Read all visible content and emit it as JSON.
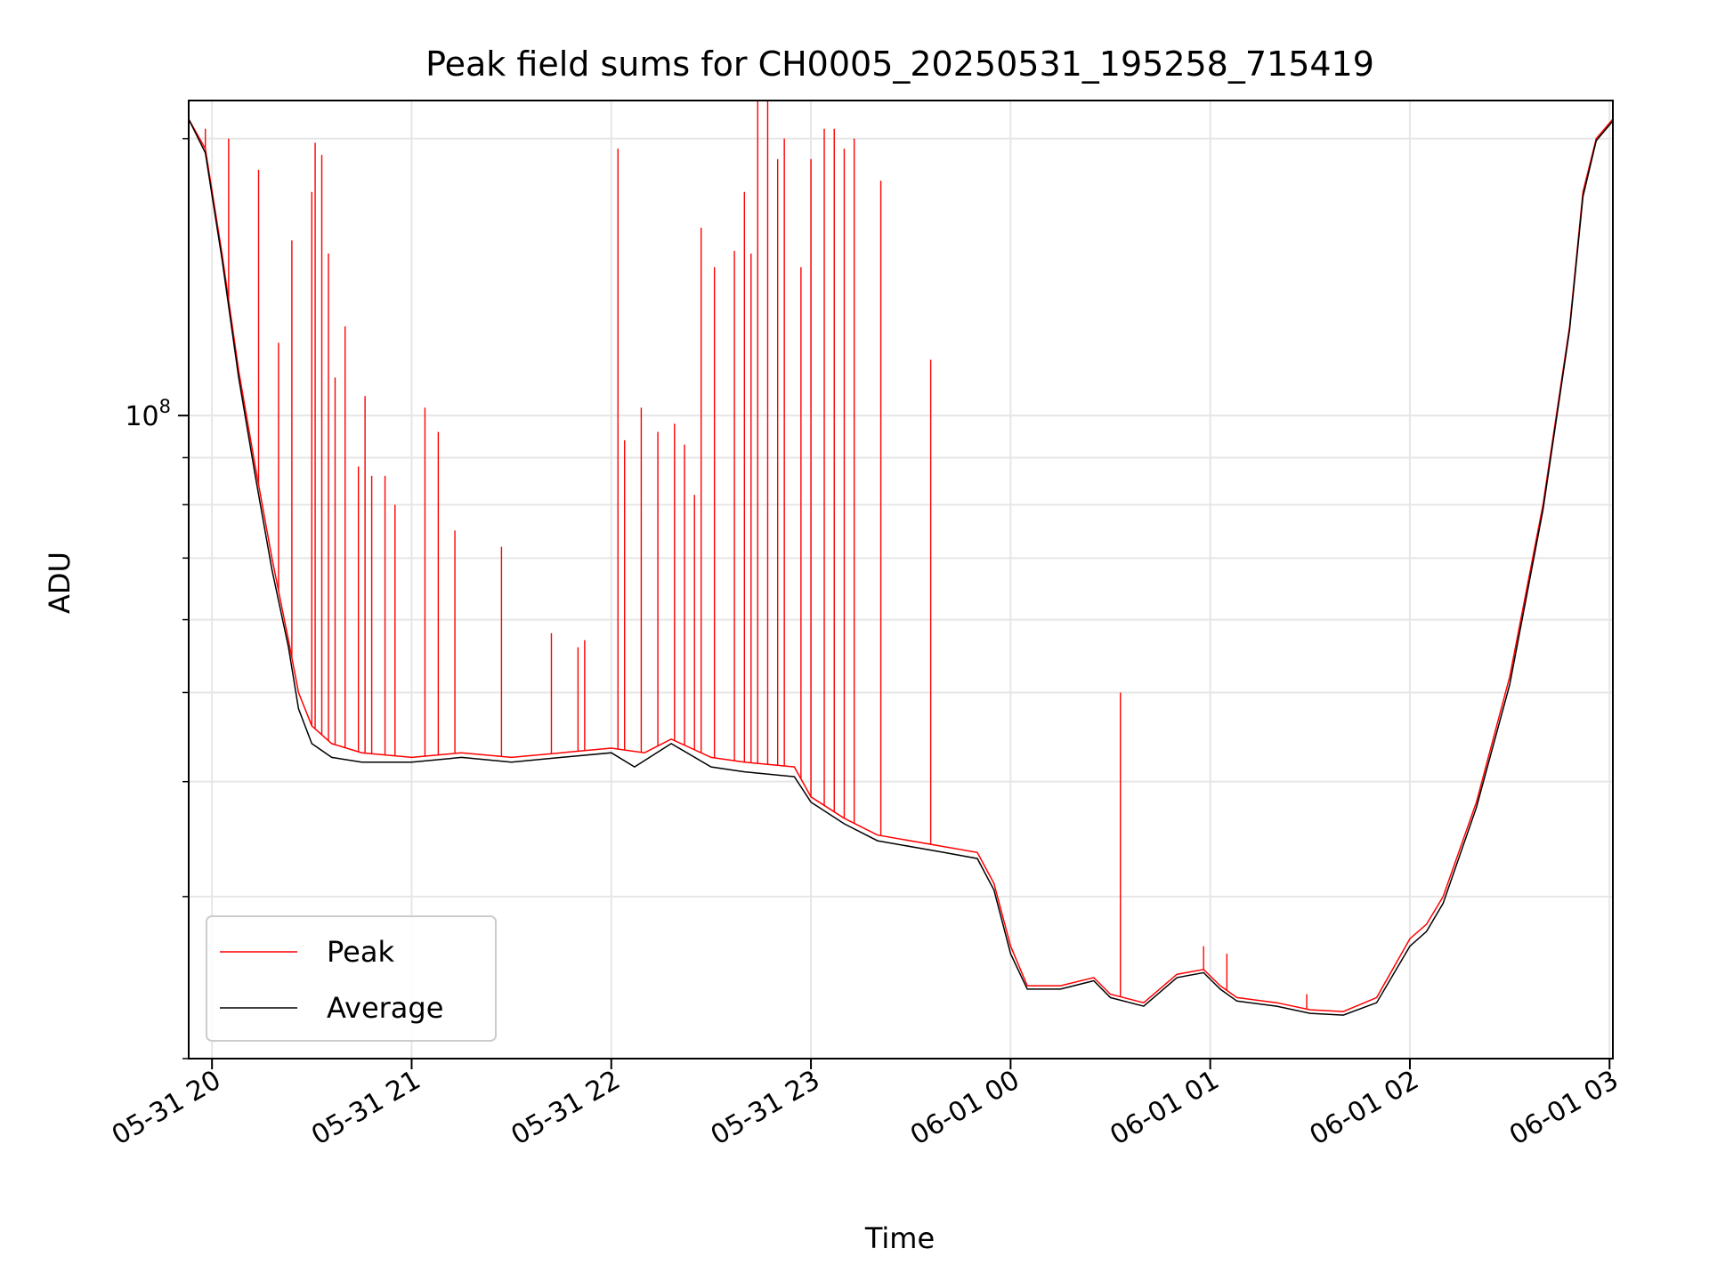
{
  "chart_data": {
    "type": "line",
    "title": "Peak field sums for CH0005_20250531_195258_715419",
    "xlabel": "Time",
    "ylabel": "ADU",
    "y_scale": "log",
    "ylim": [
      20000000,
      220000000
    ],
    "xlim": [
      "2025-05-31 19:53",
      "2025-06-01 03:01"
    ],
    "grid": true,
    "legend_position": "lower-left",
    "x_ticks": [
      {
        "t": "2025-05-31 20:00",
        "label": "05-31 20"
      },
      {
        "t": "2025-05-31 21:00",
        "label": "05-31 21"
      },
      {
        "t": "2025-05-31 22:00",
        "label": "05-31 22"
      },
      {
        "t": "2025-05-31 23:00",
        "label": "05-31 23"
      },
      {
        "t": "2025-06-01 00:00",
        "label": "06-01 00"
      },
      {
        "t": "2025-06-01 01:00",
        "label": "06-01 01"
      },
      {
        "t": "2025-06-01 02:00",
        "label": "06-01 02"
      },
      {
        "t": "2025-06-01 03:00",
        "label": "06-01 03"
      }
    ],
    "y_ticks": [
      {
        "value": 100000000,
        "label": "10",
        "exp": "8"
      }
    ],
    "series": [
      {
        "name": "Peak",
        "color": "#ff0000",
        "baseline": [
          [
            "2025-05-31 19:53",
            210000000
          ],
          [
            "2025-05-31 19:58",
            195000000
          ],
          [
            "2025-05-31 20:03",
            150000000
          ],
          [
            "2025-05-31 20:08",
            112000000
          ],
          [
            "2025-05-31 20:13",
            88000000
          ],
          [
            "2025-05-31 20:18",
            70000000
          ],
          [
            "2025-05-31 20:23",
            57000000
          ],
          [
            "2025-05-31 20:26",
            50000000
          ],
          [
            "2025-05-31 20:30",
            46000000
          ],
          [
            "2025-05-31 20:36",
            44000000
          ],
          [
            "2025-05-31 20:45",
            43000000
          ],
          [
            "2025-05-31 21:00",
            42500000
          ],
          [
            "2025-05-31 21:15",
            43000000
          ],
          [
            "2025-05-31 21:30",
            42500000
          ],
          [
            "2025-05-31 21:45",
            43000000
          ],
          [
            "2025-05-31 22:00",
            43500000
          ],
          [
            "2025-05-31 22:10",
            43000000
          ],
          [
            "2025-05-31 22:18",
            44500000
          ],
          [
            "2025-05-31 22:30",
            42500000
          ],
          [
            "2025-05-31 22:40",
            42000000
          ],
          [
            "2025-05-31 22:55",
            41500000
          ],
          [
            "2025-05-31 23:00",
            38500000
          ],
          [
            "2025-05-31 23:10",
            36500000
          ],
          [
            "2025-05-31 23:20",
            35000000
          ],
          [
            "2025-05-31 23:40",
            34000000
          ],
          [
            "2025-05-31 23:50",
            33500000
          ],
          [
            "2025-05-31 23:55",
            31000000
          ],
          [
            "2025-06-01 00:00",
            26500000
          ],
          [
            "2025-06-01 00:05",
            24000000
          ],
          [
            "2025-06-01 00:15",
            24000000
          ],
          [
            "2025-06-01 00:25",
            24500000
          ],
          [
            "2025-06-01 00:30",
            23500000
          ],
          [
            "2025-06-01 00:40",
            23000000
          ],
          [
            "2025-06-01 00:50",
            24700000
          ],
          [
            "2025-06-01 00:58",
            25000000
          ],
          [
            "2025-06-01 01:03",
            24000000
          ],
          [
            "2025-06-01 01:08",
            23300000
          ],
          [
            "2025-06-01 01:20",
            23000000
          ],
          [
            "2025-06-01 01:30",
            22600000
          ],
          [
            "2025-06-01 01:40",
            22500000
          ],
          [
            "2025-06-01 01:50",
            23300000
          ],
          [
            "2025-06-01 02:00",
            27000000
          ],
          [
            "2025-06-01 02:05",
            28000000
          ],
          [
            "2025-06-01 02:10",
            30000000
          ],
          [
            "2025-06-01 02:20",
            38000000
          ],
          [
            "2025-06-01 02:30",
            52000000
          ],
          [
            "2025-06-01 02:40",
            80000000
          ],
          [
            "2025-06-01 02:48",
            125000000
          ],
          [
            "2025-06-01 02:52",
            175000000
          ],
          [
            "2025-06-01 02:56",
            200000000
          ],
          [
            "2025-06-01 03:01",
            210000000
          ]
        ],
        "spikes": [
          [
            "2025-05-31 19:58",
            205000000
          ],
          [
            "2025-05-31 20:05",
            200000000
          ],
          [
            "2025-05-31 20:14",
            185000000
          ],
          [
            "2025-05-31 20:20",
            120000000
          ],
          [
            "2025-05-31 20:24",
            155000000
          ],
          [
            "2025-05-31 20:30",
            175000000
          ],
          [
            "2025-05-31 20:31",
            198000000
          ],
          [
            "2025-05-31 20:33",
            192000000
          ],
          [
            "2025-05-31 20:35",
            150000000
          ],
          [
            "2025-05-31 20:37",
            110000000
          ],
          [
            "2025-05-31 20:40",
            125000000
          ],
          [
            "2025-05-31 20:44",
            88000000
          ],
          [
            "2025-05-31 20:46",
            105000000
          ],
          [
            "2025-05-31 20:48",
            86000000
          ],
          [
            "2025-05-31 20:52",
            86000000
          ],
          [
            "2025-05-31 20:55",
            80000000
          ],
          [
            "2025-05-31 21:04",
            102000000
          ],
          [
            "2025-05-31 21:08",
            96000000
          ],
          [
            "2025-05-31 21:13",
            75000000
          ],
          [
            "2025-05-31 21:27",
            72000000
          ],
          [
            "2025-05-31 21:42",
            58000000
          ],
          [
            "2025-05-31 21:50",
            56000000
          ],
          [
            "2025-05-31 21:52",
            57000000
          ],
          [
            "2025-05-31 22:02",
            195000000
          ],
          [
            "2025-05-31 22:04",
            94000000
          ],
          [
            "2025-05-31 22:09",
            102000000
          ],
          [
            "2025-05-31 22:14",
            96000000
          ],
          [
            "2025-05-31 22:19",
            98000000
          ],
          [
            "2025-05-31 22:22",
            93000000
          ],
          [
            "2025-05-31 22:25",
            82000000
          ],
          [
            "2025-05-31 22:27",
            160000000
          ],
          [
            "2025-05-31 22:31",
            145000000
          ],
          [
            "2025-05-31 22:37",
            151000000
          ],
          [
            "2025-05-31 22:40",
            175000000
          ],
          [
            "2025-05-31 22:42",
            150000000
          ],
          [
            "2025-05-31 22:44",
            225000000
          ],
          [
            "2025-05-31 22:47",
            220000000
          ],
          [
            "2025-05-31 22:50",
            190000000
          ],
          [
            "2025-05-31 22:52",
            200000000
          ],
          [
            "2025-05-31 22:57",
            145000000
          ],
          [
            "2025-05-31 23:00",
            190000000
          ],
          [
            "2025-05-31 23:04",
            205000000
          ],
          [
            "2025-05-31 23:07",
            205000000
          ],
          [
            "2025-05-31 23:10",
            195000000
          ],
          [
            "2025-05-31 23:13",
            200000000
          ],
          [
            "2025-05-31 23:21",
            180000000
          ],
          [
            "2025-05-31 23:36",
            115000000
          ],
          [
            "2025-06-01 00:33",
            50000000
          ],
          [
            "2025-06-01 00:58",
            26500000
          ],
          [
            "2025-06-01 01:05",
            26000000
          ],
          [
            "2025-06-01 01:29",
            23500000
          ]
        ]
      },
      {
        "name": "Average",
        "color": "#000000",
        "values": [
          [
            "2025-05-31 19:53",
            210000000
          ],
          [
            "2025-05-31 19:58",
            193000000
          ],
          [
            "2025-05-31 20:03",
            148000000
          ],
          [
            "2025-05-31 20:08",
            110000000
          ],
          [
            "2025-05-31 20:13",
            86000000
          ],
          [
            "2025-05-31 20:18",
            68000000
          ],
          [
            "2025-05-31 20:23",
            56000000
          ],
          [
            "2025-05-31 20:26",
            48000000
          ],
          [
            "2025-05-31 20:30",
            44000000
          ],
          [
            "2025-05-31 20:36",
            42500000
          ],
          [
            "2025-05-31 20:45",
            42000000
          ],
          [
            "2025-05-31 21:00",
            42000000
          ],
          [
            "2025-05-31 21:15",
            42500000
          ],
          [
            "2025-05-31 21:30",
            42000000
          ],
          [
            "2025-05-31 21:45",
            42500000
          ],
          [
            "2025-05-31 22:00",
            43000000
          ],
          [
            "2025-05-31 22:07",
            41500000
          ],
          [
            "2025-05-31 22:18",
            44000000
          ],
          [
            "2025-05-31 22:30",
            41500000
          ],
          [
            "2025-05-31 22:40",
            41000000
          ],
          [
            "2025-05-31 22:55",
            40500000
          ],
          [
            "2025-05-31 23:00",
            38000000
          ],
          [
            "2025-05-31 23:10",
            36000000
          ],
          [
            "2025-05-31 23:20",
            34500000
          ],
          [
            "2025-05-31 23:40",
            33500000
          ],
          [
            "2025-05-31 23:50",
            33000000
          ],
          [
            "2025-05-31 23:55",
            30500000
          ],
          [
            "2025-06-01 00:00",
            26000000
          ],
          [
            "2025-06-01 00:05",
            23800000
          ],
          [
            "2025-06-01 00:15",
            23800000
          ],
          [
            "2025-06-01 00:25",
            24300000
          ],
          [
            "2025-06-01 00:30",
            23300000
          ],
          [
            "2025-06-01 00:40",
            22800000
          ],
          [
            "2025-06-01 00:50",
            24500000
          ],
          [
            "2025-06-01 00:58",
            24800000
          ],
          [
            "2025-06-01 01:03",
            23800000
          ],
          [
            "2025-06-01 01:08",
            23100000
          ],
          [
            "2025-06-01 01:20",
            22800000
          ],
          [
            "2025-06-01 01:30",
            22400000
          ],
          [
            "2025-06-01 01:40",
            22300000
          ],
          [
            "2025-06-01 01:50",
            23000000
          ],
          [
            "2025-06-01 02:00",
            26500000
          ],
          [
            "2025-06-01 02:05",
            27500000
          ],
          [
            "2025-06-01 02:10",
            29500000
          ],
          [
            "2025-06-01 02:20",
            37500000
          ],
          [
            "2025-06-01 02:30",
            51000000
          ],
          [
            "2025-06-01 02:40",
            79000000
          ],
          [
            "2025-06-01 02:48",
            124000000
          ],
          [
            "2025-06-01 02:52",
            173000000
          ],
          [
            "2025-06-01 02:56",
            199000000
          ],
          [
            "2025-06-01 03:01",
            209000000
          ]
        ]
      }
    ]
  }
}
